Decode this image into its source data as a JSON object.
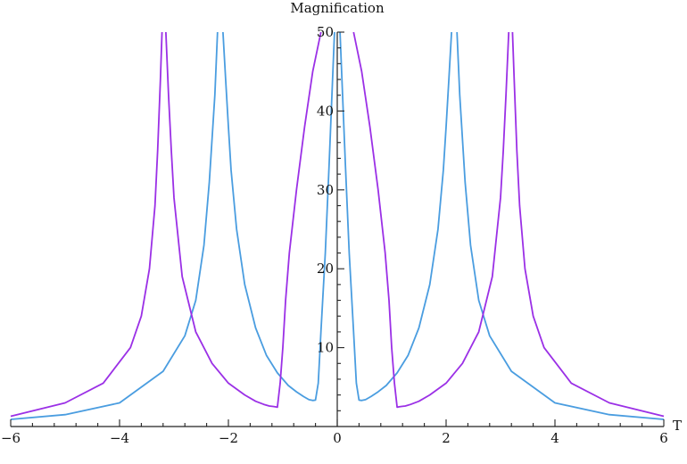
{
  "chart_data": {
    "type": "line",
    "title": "",
    "xlabel": "T",
    "ylabel": "Magnification",
    "xlim": [
      -6,
      6
    ],
    "ylim": [
      0,
      50
    ],
    "x_ticks": [
      -6,
      -4,
      -2,
      0,
      2,
      4,
      6
    ],
    "y_ticks": [
      10,
      20,
      30,
      40,
      50
    ],
    "grid": false,
    "legend": "none",
    "series": [
      {
        "color": "#4a9de0",
        "x": [
          -6.0,
          -5.0,
          -4.0,
          -3.2,
          -2.8,
          -2.6,
          -2.45,
          -2.35,
          -2.25,
          -2.2,
          -2.15,
          -2.12,
          -2.1,
          -2.05,
          -2.0,
          -1.95,
          -1.85,
          -1.7,
          -1.5,
          -1.3,
          -1.1,
          -0.9,
          -0.75,
          -0.62,
          -0.52,
          -0.45,
          -0.4,
          -0.35,
          -0.3,
          -0.22,
          -0.15,
          -0.05,
          0.0,
          0.05,
          0.15,
          0.22,
          0.3,
          0.35,
          0.4,
          0.45,
          0.52,
          0.62,
          0.75,
          0.9,
          1.1,
          1.3,
          1.5,
          1.7,
          1.85,
          1.95,
          2.0,
          2.05,
          2.1,
          2.12,
          2.15,
          2.2,
          2.25,
          2.35,
          2.45,
          2.6,
          2.8,
          3.2,
          4.0,
          5.0,
          6.0
        ],
        "y": [
          0.9,
          1.5,
          3.0,
          7.0,
          11.5,
          16.0,
          23.0,
          31.0,
          42.0,
          50,
          null,
          null,
          50,
          44.0,
          38.0,
          32.5,
          25.0,
          18.0,
          12.5,
          9.0,
          6.8,
          5.2,
          4.4,
          3.8,
          3.4,
          3.3,
          3.35,
          5.5,
          12.0,
          22.0,
          33.0,
          50,
          null,
          50,
          33.0,
          22.0,
          12.0,
          5.5,
          3.35,
          3.3,
          3.4,
          3.8,
          4.4,
          5.2,
          6.8,
          9.0,
          12.5,
          18.0,
          25.0,
          32.5,
          38.0,
          44.0,
          50,
          null,
          null,
          50,
          42.0,
          31.0,
          23.0,
          16.0,
          11.5,
          7.0,
          3.0,
          1.5,
          0.9
        ]
      },
      {
        "color": "#9b30e6",
        "x": [
          -6.0,
          -5.0,
          -4.3,
          -3.8,
          -3.6,
          -3.45,
          -3.35,
          -3.3,
          -3.25,
          -3.22,
          -3.18,
          -3.15,
          -3.1,
          -3.05,
          -3.0,
          -2.85,
          -2.6,
          -2.3,
          -2.0,
          -1.7,
          -1.5,
          -1.35,
          -1.25,
          -1.18,
          -1.14,
          -1.1,
          -1.05,
          -1.0,
          -0.95,
          -0.88,
          -0.75,
          -0.6,
          -0.45,
          -0.3,
          -0.15,
          0.0,
          0.15,
          0.3,
          0.45,
          0.6,
          0.75,
          0.88,
          0.95,
          1.0,
          1.05,
          1.1,
          1.14,
          1.18,
          1.25,
          1.35,
          1.5,
          1.7,
          2.0,
          2.3,
          2.6,
          2.85,
          3.0,
          3.05,
          3.1,
          3.15,
          3.18,
          3.22,
          3.25,
          3.3,
          3.35,
          3.45,
          3.6,
          3.8,
          4.3,
          5.0,
          6.0
        ],
        "y": [
          1.3,
          3.0,
          5.5,
          10.0,
          14.0,
          20.0,
          28.0,
          35.0,
          44.0,
          50,
          null,
          50,
          42.0,
          35.0,
          29.0,
          19.0,
          12.0,
          8.0,
          5.5,
          4.0,
          3.2,
          2.8,
          2.6,
          2.55,
          2.5,
          2.45,
          5.5,
          10.0,
          16.0,
          22.0,
          30.0,
          38.0,
          45.0,
          50,
          null,
          null,
          null,
          50,
          45.0,
          38.0,
          30.0,
          22.0,
          16.0,
          10.0,
          5.5,
          2.45,
          2.5,
          2.55,
          2.6,
          2.8,
          3.2,
          4.0,
          5.5,
          8.0,
          12.0,
          19.0,
          29.0,
          35.0,
          42.0,
          50,
          null,
          50,
          44.0,
          35.0,
          28.0,
          20.0,
          14.0,
          10.0,
          5.5,
          3.0,
          1.3
        ]
      }
    ]
  }
}
